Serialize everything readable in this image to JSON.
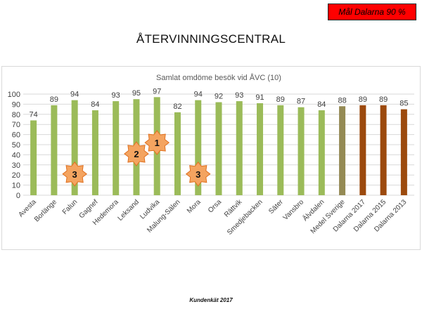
{
  "goal_badge": "Mål Dalarna 90 %",
  "page_title": "ÅTERVINNINGSCENTRAL",
  "footer": "Kundenkät 2017",
  "colors": {
    "green": "#9bbb59",
    "olive": "#948a54",
    "brown": "#9c4a0e",
    "marker_fill": "#f4a460",
    "marker_stroke": "#e07020",
    "grid": "#d9d9d9"
  },
  "chart_data": {
    "type": "bar",
    "title": "Samlat omdöme besök vid ÅVC (10)",
    "categories": [
      "Avesta",
      "Borlänge",
      "Falun",
      "Gagnef",
      "Hedemora",
      "Leksand",
      "Ludvika",
      "Malung-Sälen",
      "Mora",
      "Orsa",
      "Rättvik",
      "Smedjebacken",
      "Säter",
      "Vansbro",
      "Älvdalen",
      "Medel Sverige",
      "Dalarna 2017",
      "Dalarna 2015",
      "Dalarna 2013"
    ],
    "values": [
      74,
      89,
      94,
      84,
      93,
      95,
      97,
      82,
      94,
      92,
      93,
      91,
      89,
      87,
      84,
      88,
      89,
      89,
      85
    ],
    "bar_colors": [
      "green",
      "green",
      "green",
      "green",
      "green",
      "green",
      "green",
      "green",
      "green",
      "green",
      "green",
      "green",
      "green",
      "green",
      "green",
      "olive",
      "brown",
      "brown",
      "brown"
    ],
    "ylim": [
      0,
      100
    ],
    "yticks": [
      0,
      10,
      20,
      30,
      40,
      50,
      60,
      70,
      80,
      90,
      100
    ],
    "grid": true,
    "rank_markers": [
      {
        "category": "Ludvika",
        "rank": "1",
        "y": 52
      },
      {
        "category": "Leksand",
        "rank": "2",
        "y": 41
      },
      {
        "category": "Falun",
        "rank": "3",
        "y": 21
      },
      {
        "category": "Mora",
        "rank": "3",
        "y": 21
      }
    ]
  }
}
